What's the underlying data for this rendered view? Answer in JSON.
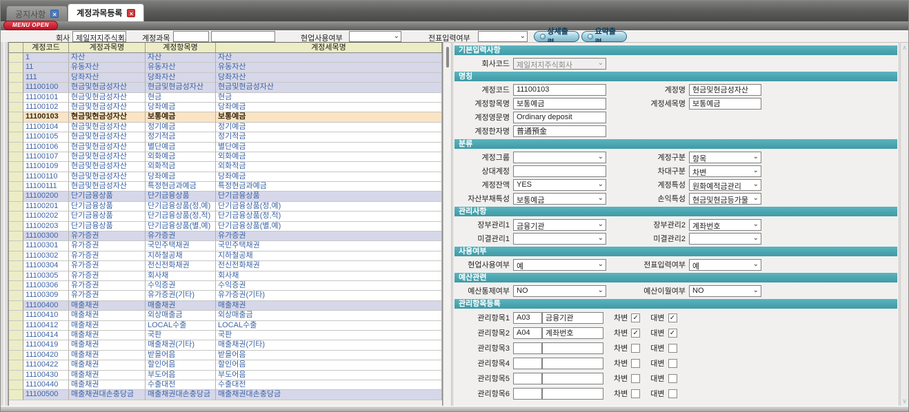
{
  "tabs": [
    {
      "label": "공지사항",
      "active": false
    },
    {
      "label": "계정과목등록",
      "active": true
    }
  ],
  "menu_open_label": "MENU OPEN",
  "toolbar": {
    "company_label": "회사",
    "company_value": "제일저지주식회사",
    "account_label": "계정과목",
    "account_code_value": "",
    "account_name_value": "",
    "field_use_label": "현업사용여부",
    "field_use_value": "",
    "slip_input_label": "전표입력여부",
    "slip_input_value": "",
    "detail_print_label": "상세출력",
    "summary_print_label": "요약출력"
  },
  "grid": {
    "headers": [
      "계정코드",
      "계정과목명",
      "계정항목명",
      "계정세목명"
    ],
    "rows": [
      {
        "code": "1",
        "name1": "자산",
        "name2": "자산",
        "name3": "자산",
        "style": "g"
      },
      {
        "code": "11",
        "name1": "유동자산",
        "name2": "유동자산",
        "name3": "유동자산",
        "style": "g"
      },
      {
        "code": "111",
        "name1": "당좌자산",
        "name2": "당좌자산",
        "name3": "당좌자산",
        "style": "g"
      },
      {
        "code": "11100100",
        "name1": "현금및현금성자산",
        "name2": "현금및현금성자산",
        "name3": "현금및현금성자산",
        "style": "g"
      },
      {
        "code": "11100101",
        "name1": "현금및현금성자산",
        "name2": "현금",
        "name3": "현금",
        "style": "w"
      },
      {
        "code": "11100102",
        "name1": "현금및현금성자산",
        "name2": "당좌예금",
        "name3": "당좌예금",
        "style": "w"
      },
      {
        "code": "11100103",
        "name1": "현금및현금성자산",
        "name2": "보통예금",
        "name3": "보통예금",
        "style": "s"
      },
      {
        "code": "11100104",
        "name1": "현금및현금성자산",
        "name2": "정기예금",
        "name3": "정기예금",
        "style": "w"
      },
      {
        "code": "11100105",
        "name1": "현금및현금성자산",
        "name2": "정기적금",
        "name3": "정기적금",
        "style": "w"
      },
      {
        "code": "11100106",
        "name1": "현금및현금성자산",
        "name2": "별단예금",
        "name3": "별단예금",
        "style": "w"
      },
      {
        "code": "11100107",
        "name1": "현금및현금성자산",
        "name2": "외화예금",
        "name3": "외화예금",
        "style": "w"
      },
      {
        "code": "11100109",
        "name1": "현금및현금성자산",
        "name2": "외화적금",
        "name3": "외화적금",
        "style": "w"
      },
      {
        "code": "11100110",
        "name1": "현금및현금성자산",
        "name2": "당좌예금",
        "name3": "당좌예금",
        "style": "w"
      },
      {
        "code": "11100111",
        "name1": "현금및현금성자산",
        "name2": "특정현금과예금",
        "name3": "특정현금과예금",
        "style": "w"
      },
      {
        "code": "11100200",
        "name1": "단기금융상품",
        "name2": "단기금융상품",
        "name3": "단기금융상품",
        "style": "g"
      },
      {
        "code": "11100201",
        "name1": "단기금융상품",
        "name2": "단기금융상품(정,예)",
        "name3": "단기금융상품(정,예)",
        "style": "w"
      },
      {
        "code": "11100202",
        "name1": "단기금융상품",
        "name2": "단기금융상품(정,적)",
        "name3": "단기금융상품(정,적)",
        "style": "w"
      },
      {
        "code": "11100203",
        "name1": "단기금융상품",
        "name2": "단기금융상품(별,예)",
        "name3": "단기금융상품(별,예)",
        "style": "w"
      },
      {
        "code": "11100300",
        "name1": "유가증권",
        "name2": "유가증권",
        "name3": "유가증권",
        "style": "g"
      },
      {
        "code": "11100301",
        "name1": "유가증권",
        "name2": "국민주택채권",
        "name3": "국민주택채권",
        "style": "w"
      },
      {
        "code": "11100302",
        "name1": "유가증권",
        "name2": "지하철공채",
        "name3": "지하철공채",
        "style": "w"
      },
      {
        "code": "11100304",
        "name1": "유가증권",
        "name2": "전신전화채권",
        "name3": "전신전화채권",
        "style": "w"
      },
      {
        "code": "11100305",
        "name1": "유가증권",
        "name2": "회사채",
        "name3": "회사채",
        "style": "w"
      },
      {
        "code": "11100306",
        "name1": "유가증권",
        "name2": "수익증권",
        "name3": "수익증권",
        "style": "w"
      },
      {
        "code": "11100309",
        "name1": "유가증권",
        "name2": "유가증권(기타)",
        "name3": "유가증권(기타)",
        "style": "w"
      },
      {
        "code": "11100400",
        "name1": "매출채권",
        "name2": "매출채권",
        "name3": "매출채권",
        "style": "g"
      },
      {
        "code": "11100410",
        "name1": "매출채권",
        "name2": "외상매출금",
        "name3": "외상매출금",
        "style": "w"
      },
      {
        "code": "11100412",
        "name1": "매출채권",
        "name2": "LOCAL수출",
        "name3": "LOCAL수출",
        "style": "w"
      },
      {
        "code": "11100414",
        "name1": "매출채권",
        "name2": "국판",
        "name3": "국판",
        "style": "w"
      },
      {
        "code": "11100419",
        "name1": "매출채권",
        "name2": "매출채권(기타)",
        "name3": "매출채권(기타)",
        "style": "w"
      },
      {
        "code": "11100420",
        "name1": "매출채권",
        "name2": "받을어음",
        "name3": "받을어음",
        "style": "w"
      },
      {
        "code": "11100422",
        "name1": "매출채권",
        "name2": "할인어음",
        "name3": "할인어음",
        "style": "w"
      },
      {
        "code": "11100430",
        "name1": "매출채권",
        "name2": "부도어음",
        "name3": "부도어음",
        "style": "w"
      },
      {
        "code": "11100440",
        "name1": "매출채권",
        "name2": "수출대전",
        "name3": "수출대전",
        "style": "w"
      },
      {
        "code": "11100500",
        "name1": "매출채권대손충당금",
        "name2": "매출채권대손충당금",
        "name3": "매출채권대손충당금",
        "style": "g"
      }
    ]
  },
  "panel": {
    "sections": [
      {
        "title": "기본입력사항",
        "rows": [
          [
            {
              "label": "회사코드",
              "kind": "select",
              "value": "제일저지주식회사",
              "disabled": true
            }
          ]
        ]
      },
      {
        "title": "명칭",
        "rows": [
          [
            {
              "label": "계정코드",
              "kind": "input",
              "value": "11100103"
            },
            {
              "label": "계정명",
              "kind": "input",
              "value": "현금및현금성자산"
            }
          ],
          [
            {
              "label": "계정항목명",
              "kind": "input",
              "value": "보통예금"
            },
            {
              "label": "계정세목명",
              "kind": "input",
              "value": "보통예금"
            }
          ],
          [
            {
              "label": "계정영문명",
              "kind": "input",
              "value": "Ordinary deposit"
            }
          ],
          [
            {
              "label": "계정한자명",
              "kind": "input",
              "value": "普通預金"
            }
          ]
        ]
      },
      {
        "title": "분류",
        "rows": [
          [
            {
              "label": "계정그룹",
              "kind": "select",
              "value": ""
            },
            {
              "label": "계정구분",
              "kind": "select",
              "value": "항목"
            }
          ],
          [
            {
              "label": "상대계정",
              "kind": "input",
              "value": ""
            },
            {
              "label": "차대구분",
              "kind": "select",
              "value": "차변"
            }
          ],
          [
            {
              "label": "계정잔액",
              "kind": "select",
              "value": "YES"
            },
            {
              "label": "계정특성",
              "kind": "select",
              "value": "원화예적금관리"
            }
          ],
          [
            {
              "label": "자산부채특성",
              "kind": "select",
              "value": "보통예금"
            },
            {
              "label": "손익특성",
              "kind": "select",
              "value": "현금및현금등가물"
            }
          ]
        ]
      },
      {
        "title": "관리사항",
        "rows": [
          [
            {
              "label": "장부관리1",
              "kind": "select",
              "value": "금융기관"
            },
            {
              "label": "장부관리2",
              "kind": "select",
              "value": "계좌번호"
            }
          ],
          [
            {
              "label": "미결관리1",
              "kind": "select",
              "value": ""
            },
            {
              "label": "미결관리2",
              "kind": "select",
              "value": ""
            }
          ]
        ]
      },
      {
        "title": "사용여부",
        "rows": [
          [
            {
              "label": "현업사용여부",
              "kind": "select",
              "value": "예"
            },
            {
              "label": "전표입력여부",
              "kind": "select",
              "value": "예"
            }
          ]
        ]
      },
      {
        "title": "예산관련",
        "rows": [
          [
            {
              "label": "예산통제여부",
              "kind": "select",
              "value": "NO"
            },
            {
              "label": "예산이월여부",
              "kind": "select",
              "value": "NO"
            }
          ]
        ]
      },
      {
        "title": "관리항목등록",
        "debit_label": "차변",
        "credit_label": "대변",
        "items": [
          {
            "label": "관리항목1",
            "code": "A03",
            "name": "금융기관",
            "debit": true,
            "credit": true
          },
          {
            "label": "관리항목2",
            "code": "A04",
            "name": "계좌번호",
            "debit": true,
            "credit": true
          },
          {
            "label": "관리항목3",
            "code": "",
            "name": "",
            "debit": false,
            "credit": false
          },
          {
            "label": "관리항목4",
            "code": "",
            "name": "",
            "debit": false,
            "credit": false
          },
          {
            "label": "관리항목5",
            "code": "",
            "name": "",
            "debit": false,
            "credit": false
          },
          {
            "label": "관리항목6",
            "code": "",
            "name": "",
            "debit": false,
            "credit": false
          }
        ]
      }
    ]
  },
  "colors": {
    "section_header": "#49a8b3",
    "grid_header_bg": "#ecedc5",
    "group_row_bg": "#d6d7e9",
    "selected_row_bg": "#fae4c4",
    "grid_text": "#3c64a6",
    "tab_close_active": "#d23c3c",
    "tab_close_inactive": "#4f7cc2",
    "menu_open_bg": "#b80e22",
    "print_button_bg": "#a6d2e2"
  }
}
